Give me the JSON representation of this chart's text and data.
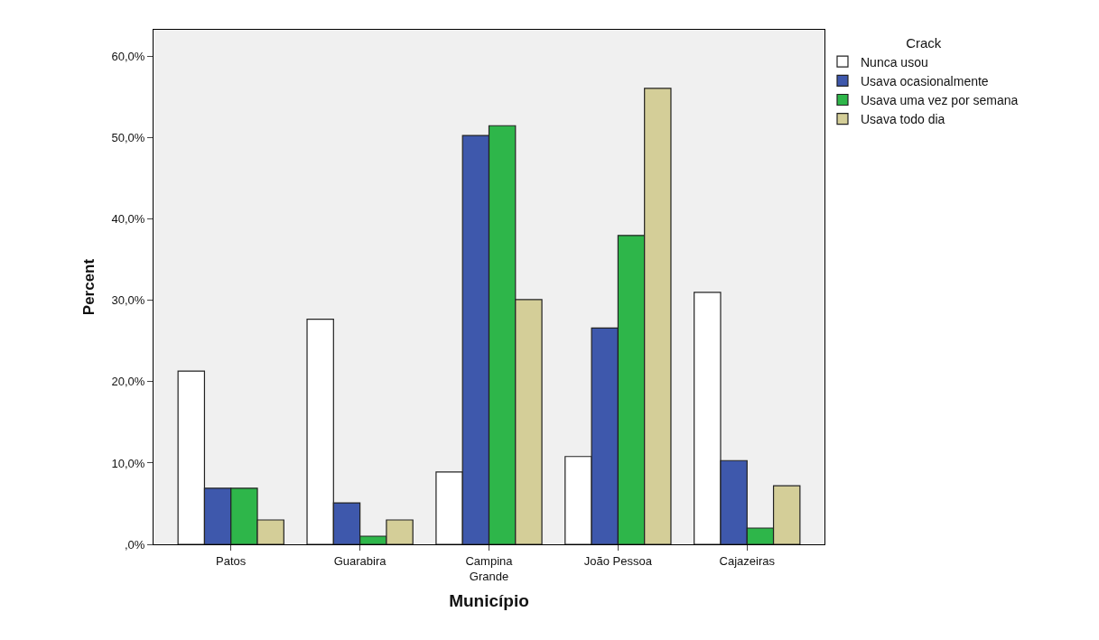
{
  "chart_data": {
    "type": "bar",
    "xlabel": "Município",
    "ylabel": "Percent",
    "legend_title": "Crack",
    "categories": [
      "Patos",
      "Guarabira",
      "Campina\nGrande",
      "João Pessoa",
      "Cajazeiras"
    ],
    "series": [
      {
        "name": "Nunca usou",
        "color": "#ffffff",
        "values": [
          21.3,
          27.7,
          8.9,
          10.8,
          31.0
        ]
      },
      {
        "name": "Usava ocasionalmente",
        "color": "#3e58ac",
        "values": [
          6.9,
          5.1,
          50.3,
          26.6,
          10.3
        ]
      },
      {
        "name": "Usava uma vez por semana",
        "color": "#2eb64a",
        "values": [
          6.9,
          1.0,
          51.5,
          38.0,
          2.0
        ]
      },
      {
        "name": "Usava todo dia",
        "color": "#d4ce98",
        "values": [
          3.0,
          3.0,
          30.1,
          56.1,
          7.2
        ]
      }
    ],
    "ylim": [
      0,
      63.3
    ],
    "yticks": [
      {
        "value": 0,
        "label": ",0%"
      },
      {
        "value": 10,
        "label": "10,0%"
      },
      {
        "value": 20,
        "label": "20,0%"
      },
      {
        "value": 30,
        "label": "30,0%"
      },
      {
        "value": 40,
        "label": "40,0%"
      },
      {
        "value": 50,
        "label": "50,0%"
      },
      {
        "value": 60,
        "label": "60,0%"
      }
    ],
    "grid": false,
    "legend": "top right"
  }
}
